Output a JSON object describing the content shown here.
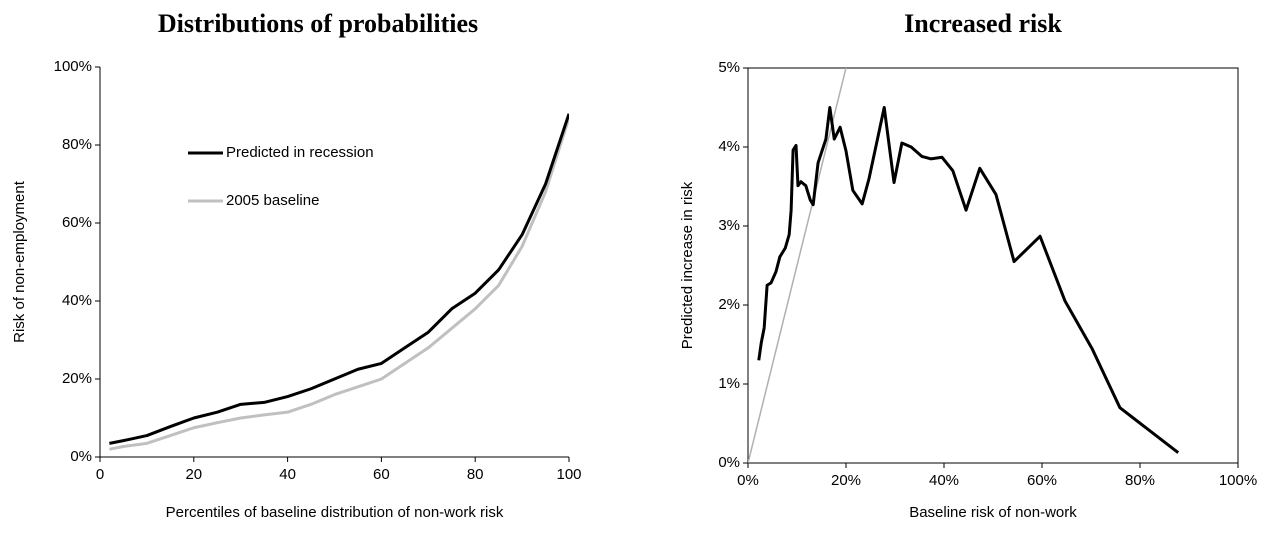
{
  "chart_data": [
    {
      "type": "line",
      "title": "Distributions of probabilities",
      "x_label": "Percentiles of baseline distribution of non-work risk",
      "y_label": "Risk of non-employment",
      "x": [
        2,
        5,
        10,
        15,
        20,
        25,
        30,
        35,
        40,
        45,
        50,
        55,
        60,
        65,
        70,
        75,
        80,
        85,
        90,
        95,
        100
      ],
      "series": [
        {
          "name": "Predicted in recession",
          "color": "#000000",
          "values": [
            3.5,
            4.2,
            5.5,
            7.8,
            10,
            11.5,
            13.5,
            14,
            15.5,
            17.5,
            20,
            22.5,
            24,
            28,
            32,
            38,
            42,
            48,
            57,
            70,
            88
          ]
        },
        {
          "name": "2005 baseline",
          "color": "#c0c0c0",
          "values": [
            2,
            2.7,
            3.5,
            5.5,
            7.5,
            8.8,
            10,
            10.8,
            11.5,
            13.5,
            16,
            18,
            20,
            24,
            28,
            33,
            38,
            44,
            54,
            68,
            87
          ]
        }
      ],
      "xlim": [
        0,
        100
      ],
      "xticks": [
        0,
        20,
        40,
        60,
        80,
        100
      ],
      "ylim": [
        0,
        100
      ],
      "yticks": [
        {
          "value": 0,
          "label": "0%"
        },
        {
          "value": 20,
          "label": "20%"
        },
        {
          "value": 40,
          "label": "40%"
        },
        {
          "value": 60,
          "label": "60%"
        },
        {
          "value": 80,
          "label": "80%"
        },
        {
          "value": 100,
          "label": "100%"
        }
      ],
      "legend": "upper left",
      "box": false
    },
    {
      "type": "line",
      "title": "Increased risk",
      "x_label": "Baseline risk of non-work",
      "y_label": "Predicted increase in risk",
      "series": [
        {
          "color": "#000000",
          "x": [
            2.2,
            2.7,
            3.3,
            3.9,
            4.7,
            5.7,
            6.5,
            7.6,
            8.4,
            8.8,
            9.2,
            9.8,
            10.2,
            10.8,
            11.8,
            12.7,
            13.3,
            14.3,
            15.9,
            16.7,
            17.6,
            18.8,
            20.0,
            21.4,
            23.3,
            24.7,
            27.8,
            29.8,
            31.4,
            33.3,
            35.5,
            37.3,
            39.6,
            41.8,
            44.5,
            47.3,
            50.6,
            54.3,
            59.6,
            64.7,
            70.2,
            75.9,
            87.8
          ],
          "values": [
            1.3,
            1.52,
            1.71,
            2.25,
            2.28,
            2.42,
            2.61,
            2.72,
            2.89,
            3.2,
            3.96,
            4.02,
            3.51,
            3.56,
            3.51,
            3.33,
            3.27,
            3.8,
            4.1,
            4.5,
            4.1,
            4.25,
            3.95,
            3.45,
            3.28,
            3.6,
            4.5,
            3.55,
            4.05,
            4.0,
            3.88,
            3.85,
            3.87,
            3.7,
            3.2,
            3.73,
            3.4,
            2.55,
            2.87,
            2.05,
            1.45,
            0.7,
            0.13
          ]
        },
        {
          "color": "#b0b0b0",
          "x": [
            0,
            20
          ],
          "values": [
            0,
            5
          ]
        }
      ],
      "xlim": [
        0,
        100
      ],
      "xticks": [
        {
          "value": 0,
          "label": "0%"
        },
        {
          "value": 20,
          "label": "20%"
        },
        {
          "value": 40,
          "label": "40%"
        },
        {
          "value": 60,
          "label": "60%"
        },
        {
          "value": 80,
          "label": "80%"
        },
        {
          "value": 100,
          "label": "100%"
        }
      ],
      "ylim": [
        0,
        5
      ],
      "yticks": [
        {
          "value": 0,
          "label": "0%"
        },
        {
          "value": 1,
          "label": "1%"
        },
        {
          "value": 2,
          "label": "2%"
        },
        {
          "value": 3,
          "label": "3%"
        },
        {
          "value": 4,
          "label": "4%"
        },
        {
          "value": 5,
          "label": "5%"
        }
      ],
      "box": true
    }
  ]
}
